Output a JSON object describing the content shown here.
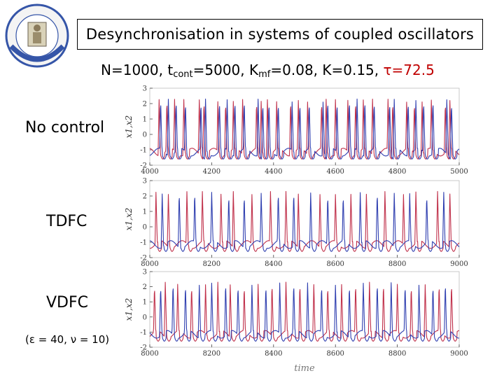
{
  "slide": {
    "title": "Desynchronisation in systems of coupled oscillators",
    "params": {
      "n": "N=1000, t",
      "cont_sub": "cont",
      "mid": "=5000, K",
      "mf_sub": "mf",
      "rest": "=0.08, K=0.15, ",
      "tau": "τ=72.5"
    },
    "labels": {
      "no_control": "No control",
      "tdfc": "TDFC",
      "vdfc": "VDFC",
      "vdfc_params": "(ε = 40, ν = 10)"
    }
  },
  "colors": {
    "series1": "#c0304a",
    "series2": "#2f3fb0"
  },
  "chart_data": [
    {
      "type": "line",
      "name": "No control",
      "ylabel": "x1,x2",
      "xlabel": "",
      "xlim": [
        4000,
        5000
      ],
      "ylim": [
        -2,
        3
      ],
      "x_ticks": [
        "4000",
        "4200",
        "4400",
        "4600",
        "4800",
        "5000"
      ],
      "y_ticks": [
        "-2",
        "-1",
        "0",
        "1",
        "2",
        "3"
      ],
      "series": [
        {
          "name": "x1",
          "spikes": [
            4030,
            4055,
            4080,
            4110,
            4160,
            4175,
            4220,
            4245,
            4270,
            4300,
            4345,
            4360,
            4380,
            4410,
            4455,
            4480,
            4510,
            4555,
            4570,
            4600,
            4640,
            4665,
            4690,
            4720,
            4770,
            4785,
            4830,
            4855,
            4880,
            4910,
            4955,
            4970
          ]
        },
        {
          "name": "x2",
          "spikes": [
            4035,
            4060,
            4085,
            4115,
            4165,
            4180,
            4225,
            4250,
            4275,
            4305,
            4350,
            4365,
            4385,
            4415,
            4460,
            4485,
            4515,
            4560,
            4575,
            4605,
            4645,
            4670,
            4695,
            4725,
            4775,
            4790,
            4835,
            4860,
            4885,
            4915,
            4960,
            4975
          ]
        }
      ]
    },
    {
      "type": "line",
      "name": "TDFC",
      "ylabel": "x1,x2",
      "xlabel": "",
      "xlim": [
        8000,
        9000
      ],
      "ylim": [
        -2,
        3
      ],
      "x_ticks": [
        "8000",
        "8200",
        "8400",
        "8600",
        "8800",
        "9000"
      ],
      "y_ticks": [
        "-2",
        "-1",
        "0",
        "1",
        "2",
        "3"
      ],
      "series": [
        {
          "name": "x1",
          "spikes": [
            8020,
            8060,
            8120,
            8170,
            8230,
            8270,
            8330,
            8390,
            8440,
            8480,
            8550,
            8600,
            8650,
            8700,
            8760,
            8820,
            8860,
            8930,
            8970
          ]
        },
        {
          "name": "x2",
          "spikes": [
            8040,
            8095,
            8145,
            8200,
            8255,
            8305,
            8360,
            8415,
            8465,
            8520,
            8575,
            8625,
            8680,
            8735,
            8790,
            8840,
            8895,
            8950
          ]
        }
      ]
    },
    {
      "type": "line",
      "name": "VDFC",
      "ylabel": "x1,x2",
      "xlabel": "time",
      "xlim": [
        8000,
        9000
      ],
      "ylim": [
        -2,
        3
      ],
      "x_ticks": [
        "8000",
        "8200",
        "8400",
        "8600",
        "8800",
        "9000"
      ],
      "y_ticks": [
        "-2",
        "-1",
        "0",
        "1",
        "2",
        "3"
      ],
      "series": [
        {
          "name": "x1",
          "spikes": [
            8015,
            8050,
            8090,
            8135,
            8180,
            8220,
            8260,
            8305,
            8350,
            8395,
            8440,
            8485,
            8530,
            8575,
            8620,
            8665,
            8710,
            8755,
            8800,
            8845,
            8890,
            8935,
            8975
          ]
        },
        {
          "name": "x2",
          "spikes": [
            8035,
            8075,
            8115,
            8160,
            8200,
            8245,
            8285,
            8330,
            8375,
            8420,
            8465,
            8510,
            8555,
            8600,
            8645,
            8690,
            8735,
            8780,
            8825,
            8870,
            8915,
            8955
          ]
        }
      ]
    }
  ]
}
